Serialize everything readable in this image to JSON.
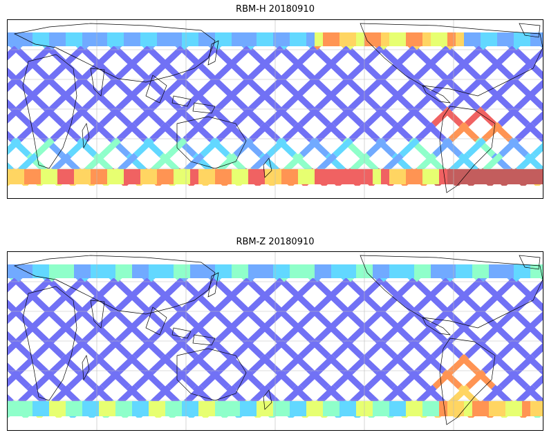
{
  "panels": [
    {
      "id": "top",
      "title": "RBM-H 20180910"
    },
    {
      "id": "bottom",
      "title": "RBM-Z 20180910"
    }
  ],
  "palette": [
    "#6a6af5",
    "#6aa6ff",
    "#5ad6ff",
    "#8affc8",
    "#e6ff6a",
    "#ffd35a",
    "#ff8f4a",
    "#f05a5a",
    "#c05555"
  ],
  "map": {
    "projection": "equirectangular",
    "gridlines": true,
    "coastlines": true
  }
}
